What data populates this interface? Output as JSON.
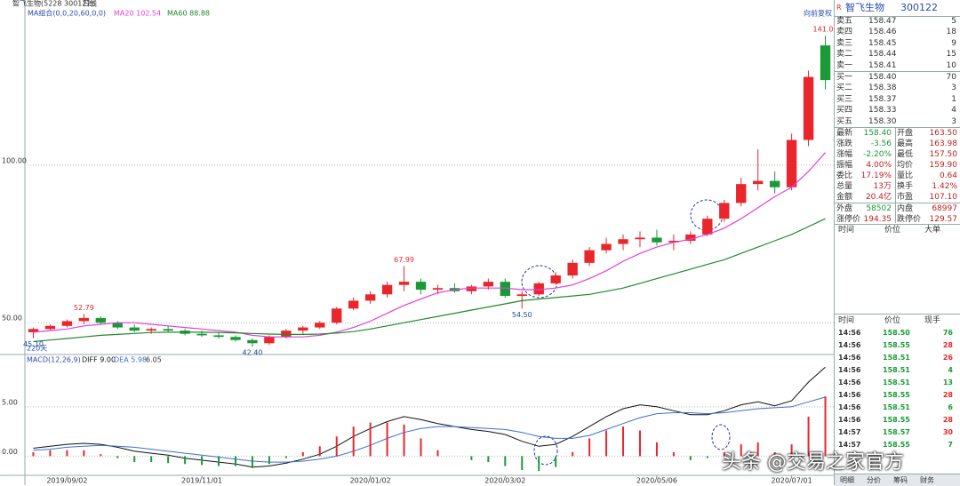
{
  "chart_data": [
    {
      "type": "candlestick",
      "title": "智飞生物(5228 300122)",
      "period": "日线",
      "indicator": "MA组合(0,0,20,60,0,0)",
      "adjust": "向前复权",
      "span_label": "220天",
      "open": [
        47,
        48,
        49,
        50.5,
        51.5,
        50,
        48.5,
        47.5,
        48,
        47.5,
        46.5,
        46,
        45.5,
        44.5,
        43.5,
        45.5,
        47.5,
        48.5,
        50,
        54.5,
        57,
        59,
        62,
        63,
        60.5,
        61,
        60,
        61.5,
        63,
        58.5,
        59,
        62.5,
        65,
        69,
        73,
        75,
        76.5,
        77,
        75.5,
        76,
        78,
        83,
        88,
        94,
        95,
        93,
        108,
        138
      ],
      "high": [
        48.5,
        49.5,
        51,
        52.79,
        52,
        50.5,
        49.5,
        48.5,
        49,
        48,
        47.5,
        47,
        46,
        45,
        46,
        48,
        49,
        50.5,
        55,
        58,
        60,
        63,
        67.99,
        64,
        62,
        62.5,
        62,
        64,
        64,
        60,
        63,
        66,
        70,
        74,
        77,
        78,
        79,
        79.5,
        78,
        79,
        84,
        89,
        96,
        105,
        98,
        110,
        130,
        141.06
      ],
      "low": [
        45.1,
        47.5,
        48.5,
        49.5,
        49.5,
        48,
        47,
        46.5,
        47,
        46,
        45.5,
        45,
        44,
        42.4,
        43,
        45,
        46.5,
        48,
        49.5,
        54,
        56,
        58,
        60,
        59,
        59,
        59.5,
        59,
        60.5,
        58,
        54.5,
        58.5,
        62,
        64,
        68,
        72,
        73,
        74,
        74.5,
        73,
        75,
        77.5,
        82,
        87,
        92,
        91,
        92,
        106,
        124
      ],
      "close": [
        48,
        49,
        50.5,
        51.5,
        50,
        48.5,
        47.5,
        48,
        47.5,
        46.5,
        46,
        45.5,
        44.5,
        43.5,
        45.5,
        47.5,
        48.5,
        50,
        54.5,
        57,
        59,
        62,
        63,
        60.5,
        61,
        60,
        61.5,
        63,
        58.5,
        59,
        62.5,
        65,
        69,
        73,
        75,
        76.5,
        77,
        75.5,
        76,
        78,
        83,
        88,
        94,
        95,
        93,
        108,
        128,
        127
      ],
      "up_color": "#e8262b",
      "down_color": "#1a9a36",
      "series": [
        {
          "name": "MA20 102.54",
          "color": "#e040e0",
          "values": [
            47,
            47.5,
            48,
            49,
            49.5,
            50,
            50,
            49.5,
            49,
            48.5,
            48,
            47.5,
            47,
            46,
            45.5,
            45.5,
            45.5,
            46,
            47,
            48.5,
            50.5,
            53,
            55.5,
            57.5,
            59.5,
            60.5,
            61,
            61,
            61,
            60.5,
            60.5,
            61,
            62,
            64,
            66.5,
            69.5,
            72,
            74,
            75.5,
            76.5,
            78,
            80,
            83,
            86.5,
            90,
            93,
            98,
            104
          ]
        },
        {
          "name": "MA60 88.88",
          "color": "#1e8a2a",
          "values": [
            44,
            44.5,
            45,
            45.5,
            46,
            46.3,
            46.6,
            46.9,
            47,
            47,
            47,
            46.9,
            46.8,
            46.6,
            46.4,
            46.3,
            46.3,
            46.4,
            46.7,
            47.2,
            48,
            49,
            50,
            51,
            52,
            53,
            54,
            55,
            56,
            57,
            57.5,
            58,
            58.5,
            59,
            60,
            61,
            62.5,
            64,
            65.5,
            67,
            68.5,
            70,
            72,
            74,
            76,
            78,
            80.5,
            83
          ]
        }
      ],
      "annotations": [
        {
          "value": 52.79,
          "label": "52.79"
        },
        {
          "value": 42.4,
          "label": "42.40"
        },
        {
          "value": 67.99,
          "label": "67.99"
        },
        {
          "value": 54.5,
          "label": "54.50"
        },
        {
          "value": 141.06,
          "label": "141.06"
        },
        {
          "value": 45.1,
          "label": "45.10"
        }
      ],
      "ylim": [
        40.2,
        146.2
      ],
      "yticks": [
        {
          "value": 50,
          "label": "50.00"
        },
        {
          "value": 100,
          "label": "100.00"
        }
      ],
      "grid": true
    },
    {
      "type": "macd",
      "title": "MACD(12,26,9)",
      "categories": [
        null,
        null,
        "2019/09/02",
        null,
        null,
        null,
        null,
        null,
        null,
        null,
        "2019/11/01",
        null,
        null,
        null,
        null,
        null,
        null,
        null,
        null,
        null,
        "2020/01/02",
        null,
        null,
        null,
        null,
        null,
        null,
        null,
        "2020/03/02",
        null,
        null,
        null,
        null,
        null,
        null,
        null,
        null,
        "2020/05/06",
        null,
        null,
        null,
        null,
        null,
        null,
        null,
        "2020/07/01",
        null,
        null
      ],
      "series": [
        {
          "name": "DIFF 9.00",
          "type": "line",
          "color": "#111111",
          "values": [
            0.8,
            1,
            1.2,
            1.3,
            1.2,
            0.9,
            0.5,
            0.3,
            0.1,
            -0.2,
            -0.4,
            -0.6,
            -0.8,
            -1.1,
            -1,
            -0.7,
            -0.3,
            0.2,
            1,
            2,
            2.8,
            3.5,
            4,
            3.7,
            3.3,
            3,
            2.7,
            2.5,
            2.2,
            1.5,
            1,
            1.2,
            2,
            3,
            4,
            4.8,
            5.2,
            5,
            4.6,
            4.2,
            4.2,
            4.6,
            5.2,
            5.5,
            5.1,
            5.6,
            7.5,
            9
          ]
        },
        {
          "name": "DEA 5.98",
          "type": "line",
          "color": "#3b6fd0",
          "values": [
            0.6,
            0.7,
            0.9,
            1,
            1.1,
            1,
            0.9,
            0.7,
            0.5,
            0.3,
            0.1,
            -0.1,
            -0.3,
            -0.5,
            -0.6,
            -0.6,
            -0.5,
            -0.3,
            0,
            0.5,
            1.1,
            1.8,
            2.4,
            2.8,
            3,
            3,
            2.9,
            2.8,
            2.7,
            2.4,
            2,
            1.8,
            1.8,
            2.1,
            2.7,
            3.3,
            3.9,
            4.3,
            4.4,
            4.4,
            4.3,
            4.4,
            4.6,
            4.8,
            4.9,
            5,
            5.5,
            5.98
          ]
        },
        {
          "name": "6.05",
          "type": "bar",
          "color": "#e8262b",
          "down_color": "#1a9a36",
          "values": [
            0.4,
            0.6,
            0.6,
            0.6,
            0.2,
            -0.2,
            -0.6,
            -0.6,
            -0.7,
            -0.8,
            -0.9,
            -1,
            -1,
            -1.2,
            -0.8,
            -0.2,
            0.4,
            1,
            2,
            3,
            3.4,
            3.4,
            3.2,
            1.8,
            0.6,
            0,
            -0.4,
            -0.6,
            -1,
            -1.4,
            -1.5,
            -1.1,
            0.4,
            1.8,
            2.6,
            3,
            2.6,
            1.4,
            0.4,
            -0.4,
            -0.2,
            0.4,
            1.2,
            1.4,
            0.4,
            1.2,
            4,
            6.05
          ]
        }
      ],
      "ylim": [
        -1.85,
        9.3
      ],
      "yticks": [
        {
          "value": 0,
          "label": "0.00"
        },
        {
          "value": 5,
          "label": "5.00"
        }
      ],
      "grid": true
    }
  ],
  "quote": {
    "flag": "R",
    "name": "智飞生物",
    "code": "300122",
    "asks": [
      [
        "卖五",
        "158.47",
        "5"
      ],
      [
        "卖四",
        "158.46",
        "18"
      ],
      [
        "卖三",
        "158.45",
        "9"
      ],
      [
        "卖二",
        "158.44",
        "15"
      ],
      [
        "卖一",
        "158.41",
        "10"
      ]
    ],
    "bids": [
      [
        "买一",
        "158.40",
        "70"
      ],
      [
        "买二",
        "158.38",
        "3"
      ],
      [
        "买三",
        "158.37",
        "1"
      ],
      [
        "买四",
        "158.33",
        "4"
      ],
      [
        "买五",
        "158.30",
        "3"
      ]
    ],
    "stats": [
      [
        "最新",
        "158.40",
        "开盘",
        "163.50"
      ],
      [
        "涨跌",
        "-3.56",
        "最高",
        "163.98"
      ],
      [
        "涨幅",
        "-2.20%",
        "最低",
        "157.50"
      ],
      [
        "振幅",
        "4.00%",
        "均价",
        "159.90"
      ],
      [
        "委比",
        "17.19%",
        "量比",
        "0.64"
      ],
      [
        "总量",
        "13万",
        "换手",
        "1.42%"
      ],
      [
        "金额",
        "20.4亿",
        "市盈",
        "107.10"
      ]
    ],
    "outer": [
      [
        "外盘",
        "58502",
        "内盘",
        "68997"
      ],
      [
        "涨停价",
        "194.35",
        "跌停价",
        "129.57"
      ]
    ],
    "big_header": [
      "时间",
      "价位",
      "大单"
    ],
    "ticks_header": [
      "时间",
      "价位",
      "现手"
    ],
    "trades": [
      [
        "14:56",
        "158.50",
        "76"
      ],
      [
        "14:56",
        "158.55",
        "28"
      ],
      [
        "14:56",
        "158.51",
        "26"
      ],
      [
        "14:56",
        "158.51",
        "4"
      ],
      [
        "14:56",
        "158.51",
        "13"
      ],
      [
        "14:56",
        "158.55",
        "28"
      ],
      [
        "14:56",
        "158.51",
        "6"
      ],
      [
        "14:56",
        "158.55",
        "28"
      ],
      [
        "14:57",
        "158.57",
        "30"
      ],
      [
        "14:57",
        "158.55",
        "7"
      ]
    ],
    "trade_colors": [
      "#1a9a36",
      "#e8262b",
      "#e8262b",
      "#1a9a36",
      "#1a9a36",
      "#e8262b",
      "#1a9a36",
      "#e8262b",
      "#e8262b",
      "#1a9a36"
    ],
    "tabs": [
      "明细",
      "分价",
      "筹码",
      "财务"
    ]
  },
  "watermark": "头条 @交易之家官方"
}
